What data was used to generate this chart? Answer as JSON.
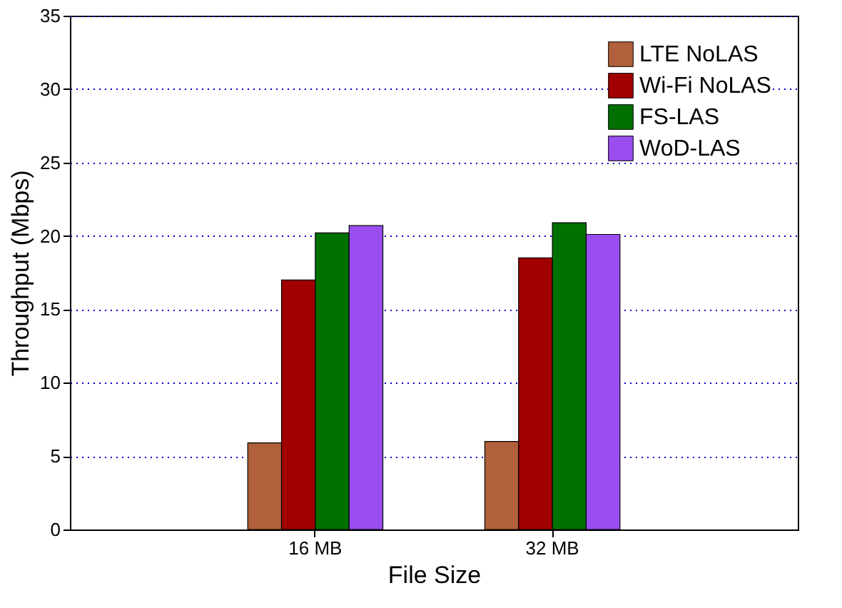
{
  "chart_data": {
    "type": "bar",
    "xlabel": "File Size",
    "ylabel": "Throughput (Mbps)",
    "categories": [
      "16 MB",
      "32 MB"
    ],
    "series": [
      {
        "name": "LTE NoLAS",
        "color": "#b0603a",
        "values": [
          5.9,
          6.0
        ]
      },
      {
        "name": "Wi-Fi NoLAS",
        "color": "#a00000",
        "values": [
          17.0,
          18.5
        ]
      },
      {
        "name": "FS-LAS",
        "color": "#007000",
        "values": [
          20.2,
          20.9
        ]
      },
      {
        "name": "WoD-LAS",
        "color": "#9a4ef0",
        "values": [
          20.7,
          20.1
        ]
      }
    ],
    "ylim": [
      0,
      35
    ],
    "yticks": [
      0,
      5,
      10,
      15,
      20,
      25,
      30,
      35
    ],
    "grid": "y",
    "legend": "top right"
  }
}
